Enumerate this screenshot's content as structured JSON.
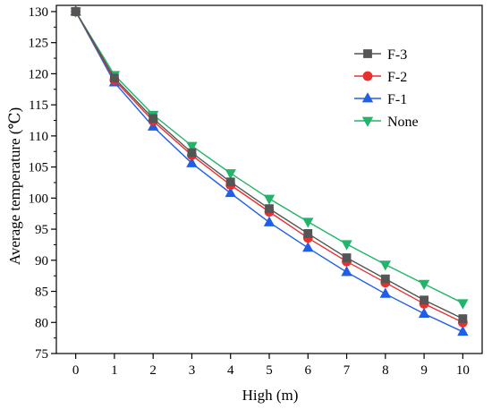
{
  "chart_data": {
    "type": "line",
    "title": "",
    "xlabel": "High (m)",
    "ylabel": "Average temperature (℃)",
    "xlim": [
      -0.5,
      10.5
    ],
    "ylim": [
      75,
      131
    ],
    "xticks": [
      0,
      1,
      2,
      3,
      4,
      5,
      6,
      7,
      8,
      9,
      10
    ],
    "yticks": [
      75,
      80,
      85,
      90,
      95,
      100,
      105,
      110,
      115,
      120,
      125,
      130
    ],
    "grid": false,
    "legend": "top-right",
    "x": [
      0,
      1,
      2,
      3,
      4,
      5,
      6,
      7,
      8,
      9,
      10
    ],
    "series": [
      {
        "name": "F-3",
        "color": "#555555",
        "marker": "square",
        "values": [
          130,
          119.3,
          112.8,
          107.3,
          102.6,
          98.3,
          94.3,
          90.4,
          87.0,
          83.6,
          80.6
        ]
      },
      {
        "name": "F-2",
        "color": "#e8312f",
        "marker": "circle",
        "values": [
          130,
          119.0,
          112.4,
          106.9,
          102.1,
          97.8,
          93.6,
          89.8,
          86.4,
          83.0,
          80.0
        ]
      },
      {
        "name": "F-1",
        "color": "#1f5fe8",
        "marker": "triangle-up",
        "values": [
          130,
          118.6,
          111.5,
          105.6,
          100.8,
          96.1,
          92.0,
          88.1,
          84.6,
          81.4,
          78.5
        ]
      },
      {
        "name": "None",
        "color": "#22b46a",
        "marker": "triangle-down",
        "values": [
          130,
          119.8,
          113.4,
          108.4,
          104.0,
          99.9,
          96.2,
          92.6,
          89.3,
          86.2,
          83.1
        ]
      }
    ]
  }
}
